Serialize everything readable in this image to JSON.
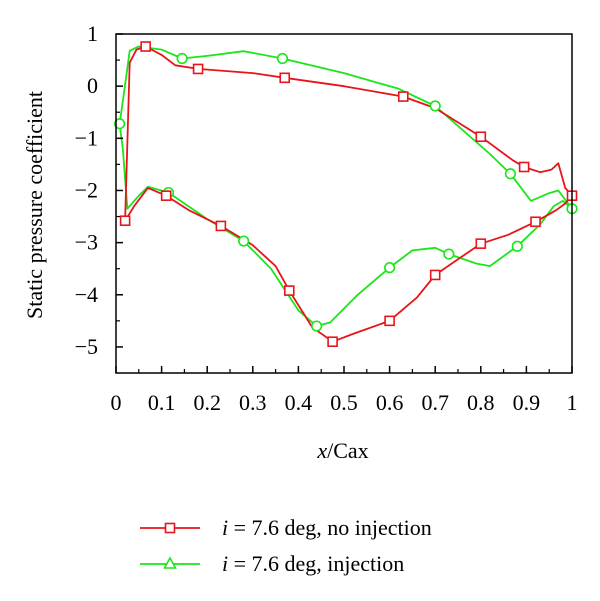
{
  "chart_data": {
    "type": "line",
    "xlabel_italic": "x",
    "xlabel_rest": "/Cax",
    "ylabel": "Static pressure coefficient",
    "xlim": [
      0,
      1
    ],
    "ylim": [
      -5.5,
      1
    ],
    "x_ticks": [
      0,
      0.1,
      0.2,
      0.3,
      0.4,
      0.5,
      0.6,
      0.7,
      0.8,
      0.9,
      1
    ],
    "x_tick_labels": [
      "0",
      "0.1",
      "0.2",
      "0.3",
      "0.4",
      "0.5",
      "0.6",
      "0.7",
      "0.8",
      "0.9",
      "1"
    ],
    "y_ticks": [
      1,
      0,
      -1,
      -2,
      -3,
      -4,
      -5
    ],
    "y_tick_labels": [
      "1",
      "0",
      "−1",
      "−2",
      "−3",
      "−4",
      "−5"
    ],
    "grid": false,
    "legend_position": "bottom",
    "series": [
      {
        "name": "i = 7.6 deg, no injection",
        "legend_italic": "i",
        "legend_rest": " = 7.6 deg, no injection",
        "color": "#e8141b",
        "marker": "square",
        "x": [
          0.02,
          0.04,
          0.07,
          0.11,
          0.16,
          0.23,
          0.3,
          0.35,
          0.38,
          0.43,
          0.475,
          0.52,
          0.6,
          0.66,
          0.7,
          0.74,
          0.8,
          0.86,
          0.92,
          0.965,
          0.985,
          1.0,
          0.985,
          0.97,
          0.955,
          0.93,
          0.895,
          0.87,
          0.8,
          0.7,
          0.63,
          0.5,
          0.37,
          0.3,
          0.18,
          0.13,
          0.1,
          0.065,
          0.045,
          0.03
        ],
        "y": [
          -2.58,
          -2.3,
          -1.95,
          -2.1,
          -2.38,
          -2.68,
          -3.05,
          -3.45,
          -3.92,
          -4.62,
          -4.9,
          -4.75,
          -4.5,
          -4.05,
          -3.62,
          -3.38,
          -3.02,
          -2.85,
          -2.6,
          -2.38,
          -2.25,
          -2.1,
          -1.95,
          -1.48,
          -1.6,
          -1.65,
          -1.55,
          -1.42,
          -0.97,
          -0.42,
          -0.2,
          0.0,
          0.16,
          0.25,
          0.33,
          0.4,
          0.6,
          0.76,
          0.7,
          0.45
        ],
        "marker_x": [
          0.02,
          0.11,
          0.23,
          0.38,
          0.475,
          0.6,
          0.7,
          0.8,
          0.92,
          1.0,
          0.895,
          0.8,
          0.63,
          0.37,
          0.18,
          0.065
        ],
        "marker_y": [
          -2.58,
          -2.1,
          -2.68,
          -3.92,
          -4.9,
          -4.5,
          -3.62,
          -3.02,
          -2.6,
          -2.1,
          -1.55,
          -0.97,
          -0.2,
          0.16,
          0.33,
          0.76
        ]
      },
      {
        "name": "i = 7.6 deg, injection",
        "legend_italic": "i",
        "legend_rest": " = 7.6 deg, injection",
        "color": "#1ae619",
        "marker": "circle",
        "legend_marker": "triangle",
        "x": [
          0.008,
          0.015,
          0.025,
          0.05,
          0.07,
          0.115,
          0.2,
          0.28,
          0.34,
          0.4,
          0.44,
          0.47,
          0.53,
          0.6,
          0.65,
          0.7,
          0.73,
          0.79,
          0.82,
          0.88,
          0.93,
          0.96,
          0.98,
          1.0,
          0.97,
          0.95,
          0.91,
          0.865,
          0.82,
          0.7,
          0.62,
          0.5,
          0.365,
          0.28,
          0.2,
          0.145,
          0.1,
          0.05,
          0.03,
          0.018,
          0.008
        ],
        "y": [
          -0.72,
          -1.2,
          -2.35,
          -2.1,
          -1.93,
          -2.04,
          -2.55,
          -2.97,
          -3.5,
          -4.3,
          -4.6,
          -4.53,
          -4.0,
          -3.48,
          -3.15,
          -3.1,
          -3.22,
          -3.4,
          -3.45,
          -3.07,
          -2.65,
          -2.3,
          -2.2,
          -2.35,
          -2.0,
          -2.05,
          -2.2,
          -1.68,
          -1.3,
          -0.38,
          -0.05,
          0.25,
          0.53,
          0.67,
          0.58,
          0.53,
          0.7,
          0.76,
          0.68,
          -0.1,
          -0.72
        ],
        "marker_x": [
          0.008,
          0.115,
          0.28,
          0.44,
          0.6,
          0.73,
          0.88,
          1.0,
          0.865,
          0.7,
          0.365,
          0.145
        ],
        "marker_y": [
          -0.72,
          -2.04,
          -2.97,
          -4.6,
          -3.48,
          -3.22,
          -3.07,
          -2.35,
          -1.68,
          -0.38,
          0.53,
          0.53
        ]
      }
    ]
  }
}
